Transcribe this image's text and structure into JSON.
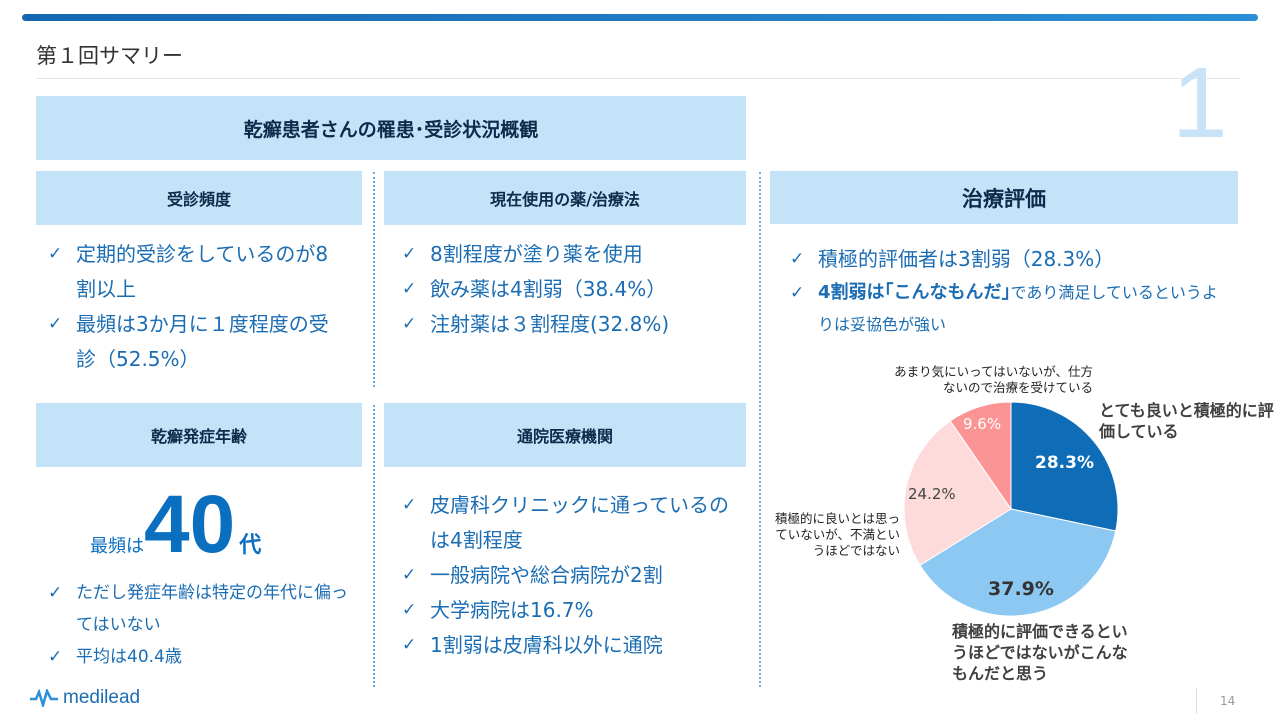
{
  "slide": {
    "title": "第１回サマリー",
    "number": "1",
    "page": "14",
    "logo_text": "medilead"
  },
  "main_header": "乾癬患者さんの罹患･受診状況概観",
  "sections": {
    "frequency": {
      "header": "受診頻度",
      "items": [
        "定期的受診をしているのが8割以上",
        "最頻は3か月に１度程度の受診（52.5%）"
      ]
    },
    "treatment": {
      "header": "現在使用の薬/治療法",
      "items": [
        "8割程度が塗り薬を使用",
        "飲み薬は4割弱（38.4%）",
        "注射薬は３割程度(32.8%)"
      ]
    },
    "onset": {
      "header": "乾癬発症年齢",
      "mode_prefix": "最頻は",
      "mode_value": "40",
      "mode_suffix": "代",
      "items": [
        "ただし発症年齢は特定の年代に偏ってはいない",
        "平均は40.4歳"
      ]
    },
    "institution": {
      "header": "通院医療機関",
      "items": [
        "皮膚科クリニックに通っているのは4割程度",
        "一般病院や総合病院が2割",
        "大学病院は16.7%",
        "1割弱は皮膚科以外に通院"
      ]
    },
    "evaluation": {
      "header": "治療評価",
      "item1": "積極的評価者は3割弱（28.3%）",
      "item2_bold": "4割弱は｢こんなもんだ｣",
      "item2_rest": "であり満足しているというよりは妥協色が強い"
    }
  },
  "chart_data": {
    "type": "pie",
    "start": "top",
    "direction": "clockwise",
    "slices": [
      {
        "label": "とても良いと積極的に評価している",
        "value": 28.3,
        "display": "28.3%",
        "color": "#0f6cb6"
      },
      {
        "label": "積極的に評価できるというほどではないがこんなもんだと思う",
        "value": 37.9,
        "display": "37.9%",
        "color": "#8dc8f3"
      },
      {
        "label": "積極的に良いとは思っていないが、不満というほどではない",
        "value": 24.2,
        "display": "24.2%",
        "color": "#fddbdb"
      },
      {
        "label": "あまり気にいってはいないが、仕方ないので治療を受けている",
        "value": 9.6,
        "display": "9.6%",
        "color": "#fb9595"
      }
    ]
  }
}
